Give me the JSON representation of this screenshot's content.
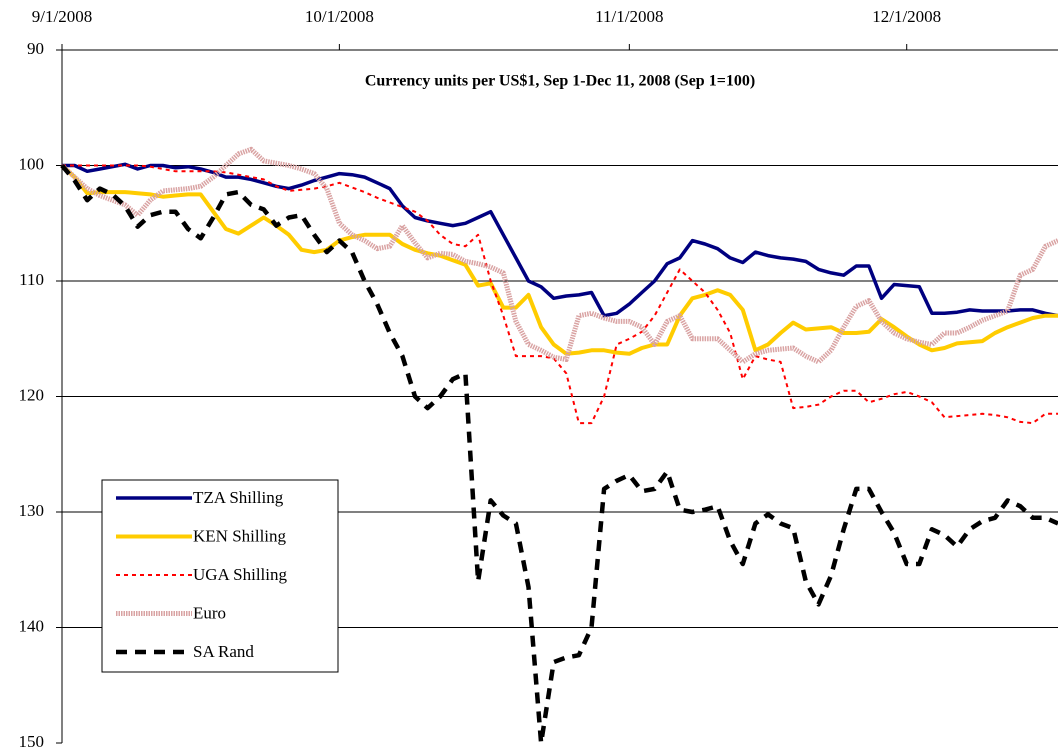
{
  "chart_data": {
    "type": "line",
    "title": "Currency units per US$1, Sep 1-Dec 11, 2008 (Sep 1=100)",
    "categories": [
      "9/1/2008",
      null,
      null,
      null,
      null,
      null,
      null,
      null,
      null,
      null,
      null,
      null,
      null,
      null,
      null,
      null,
      null,
      null,
      null,
      null,
      null,
      null,
      "10/1/2008",
      null,
      null,
      null,
      null,
      null,
      null,
      null,
      null,
      null,
      null,
      null,
      null,
      null,
      null,
      null,
      null,
      null,
      null,
      null,
      null,
      null,
      null,
      "11/1/2008",
      null,
      null,
      null,
      null,
      null,
      null,
      null,
      null,
      null,
      null,
      null,
      null,
      null,
      null,
      null,
      null,
      null,
      null,
      null,
      null,
      null,
      "12/1/2008",
      null,
      null,
      null,
      null,
      null,
      null,
      null,
      null,
      null,
      null,
      null,
      null
    ],
    "ylim": [
      90,
      150
    ],
    "yticks": [
      90,
      100,
      110,
      120,
      130,
      140,
      150
    ],
    "y_reversed": true,
    "x_axis_position": "top",
    "grid": true,
    "legend": "lower left",
    "series": [
      {
        "name": "TZA Shilling",
        "color": "#000080",
        "values": [
          100,
          100,
          100.5,
          100.3,
          100.1,
          99.9,
          100.3,
          100,
          100,
          100.2,
          100.1,
          100.3,
          100.6,
          101,
          101,
          101.2,
          101.5,
          101.8,
          102,
          101.7,
          101.3,
          101,
          100.7,
          100.8,
          101,
          101.5,
          102,
          103.5,
          104.5,
          104.8,
          105,
          105.2,
          105,
          104.5,
          104,
          106,
          108,
          110,
          110.5,
          111.5,
          111.3,
          111.2,
          111,
          113,
          112.8,
          112,
          111,
          110,
          108.5,
          108,
          106.5,
          106.8,
          107.2,
          108,
          108.4,
          107.5,
          107.8,
          108,
          108.1,
          108.3,
          109,
          109.3,
          109.5,
          108.7,
          108.7,
          111.5,
          110.3,
          110.4,
          110.5,
          112.8,
          112.8,
          112.7,
          112.5,
          112.6,
          112.6,
          112.6,
          112.5,
          112.5,
          112.8,
          113
        ]
      },
      {
        "name": "KEN Shilling",
        "color": "#ffcc00",
        "values": [
          100,
          101,
          102.4,
          102.3,
          102.3,
          102.3,
          102.4,
          102.5,
          102.7,
          102.6,
          102.5,
          102.5,
          104,
          105.5,
          105.9,
          105.2,
          104.5,
          105.2,
          106,
          107.3,
          107.5,
          107.3,
          106.5,
          106.2,
          106,
          106,
          106,
          106.8,
          107.3,
          107.6,
          107.8,
          108.2,
          108.6,
          110.4,
          110.2,
          112.3,
          112.3,
          111.2,
          114,
          115.5,
          116.3,
          116.2,
          116,
          116,
          116.2,
          116.3,
          115.8,
          115.5,
          115.5,
          113,
          111.5,
          111.2,
          110.8,
          111.2,
          112.5,
          116,
          115.5,
          114.5,
          113.6,
          114.2,
          114.1,
          114,
          114.5,
          114.5,
          114.4,
          113.3,
          114,
          114.8,
          115.5,
          116,
          115.8,
          115.4,
          115.3,
          115.2,
          114.5,
          114,
          113.6,
          113.2,
          113,
          113
        ]
      },
      {
        "name": "UGA Shilling",
        "color": "#ff0000",
        "values": [
          100,
          100,
          100,
          100,
          100,
          100,
          100,
          100.1,
          100.3,
          100.5,
          100.5,
          100.5,
          100.5,
          100.6,
          100.8,
          101,
          101.2,
          101.8,
          102.2,
          102.1,
          102,
          101.8,
          101.5,
          101.9,
          102.3,
          102.8,
          103.2,
          103.6,
          104,
          104.8,
          106,
          106.8,
          107,
          106,
          110,
          113,
          116.5,
          116.5,
          116.5,
          116.7,
          118,
          122.3,
          122.3,
          120,
          115.5,
          115,
          114.4,
          113,
          111,
          109,
          110,
          111,
          112.5,
          114.5,
          118.5,
          116.5,
          116.8,
          117,
          121,
          120.9,
          120.7,
          120,
          119.5,
          119.5,
          120.5,
          120.2,
          119.8,
          119.6,
          120,
          120.5,
          121.8,
          121.7,
          121.6,
          121.5,
          121.6,
          121.8,
          122.2,
          122.3,
          121.5,
          121.5
        ]
      },
      {
        "name": "Euro",
        "color": "#d9a3a3",
        "values": [
          100,
          101,
          102,
          102.6,
          103,
          103.4,
          104.3,
          103,
          102.2,
          102.1,
          102,
          101.8,
          101,
          100,
          99,
          98.6,
          99.6,
          99.8,
          100,
          100.3,
          100.7,
          102,
          105,
          106,
          106.5,
          107.2,
          107,
          105.2,
          106.7,
          108,
          107.6,
          107.7,
          108.3,
          108.5,
          108.8,
          109.3,
          113.5,
          115.5,
          116,
          116.6,
          116.8,
          113,
          112.8,
          113.2,
          113.5,
          113.5,
          114,
          115.5,
          113.5,
          113,
          115,
          115,
          115,
          116,
          117,
          116.3,
          116,
          115.9,
          115.8,
          116.5,
          117,
          116,
          114,
          112.2,
          111.7,
          113.5,
          114.5,
          115,
          115.3,
          115.5,
          114.5,
          114.5,
          114,
          113.4,
          113,
          112.6,
          109.5,
          109,
          107,
          106.5
        ]
      },
      {
        "name": "SA Rand",
        "color": "#000000",
        "values": [
          100,
          101.3,
          103,
          102,
          102.5,
          103.5,
          105.3,
          104.3,
          104,
          104,
          105.5,
          106.3,
          104.5,
          102.5,
          102.3,
          103.4,
          103.8,
          105.2,
          104.5,
          104.3,
          106,
          107.5,
          106.5,
          107.5,
          110,
          112,
          114.5,
          116.5,
          120,
          121,
          120,
          118.5,
          118,
          136,
          129,
          130.3,
          131,
          136.5,
          150,
          143,
          142.6,
          142.4,
          140,
          128,
          127.3,
          126.8,
          128.2,
          128,
          126.5,
          129.8,
          130,
          129.8,
          129.5,
          132.5,
          134.5,
          131,
          130.2,
          131,
          131.4,
          136,
          138,
          135.5,
          131.5,
          128,
          128,
          130,
          131.8,
          134.5,
          134.5,
          131.5,
          132,
          133,
          131.5,
          130.8,
          130.5,
          129,
          129.5,
          130.5,
          130.5,
          131
        ]
      }
    ]
  }
}
